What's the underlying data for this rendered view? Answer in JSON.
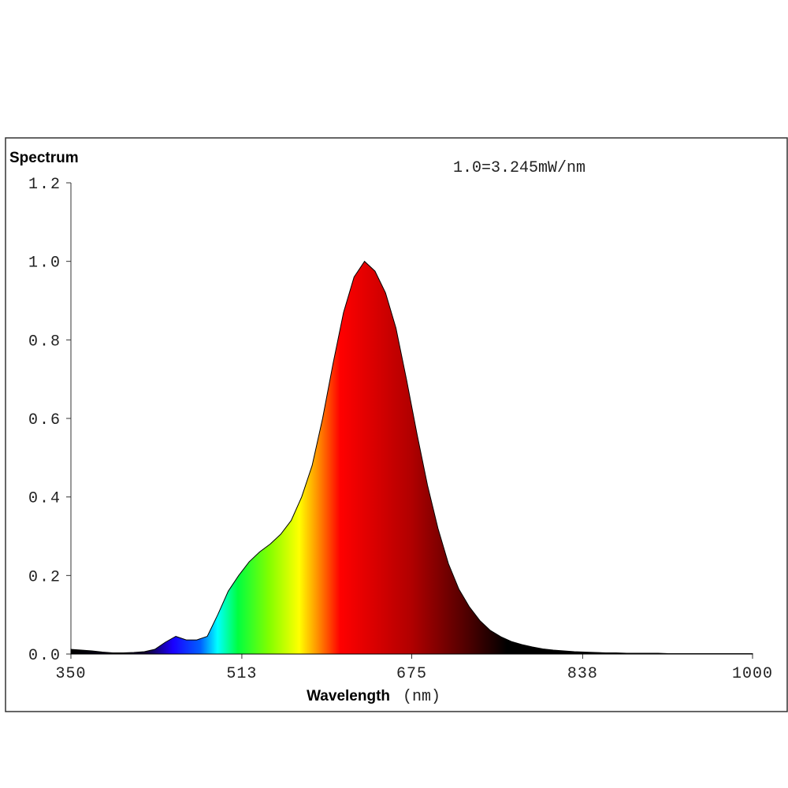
{
  "chart_data": {
    "type": "area",
    "title": "Spectrum",
    "annotation": "1.0=3.245mW/nm",
    "x_label": "Wavelength",
    "x_unit": "(nm)",
    "x": [
      350,
      360,
      370,
      380,
      390,
      400,
      410,
      420,
      430,
      440,
      450,
      460,
      470,
      480,
      490,
      500,
      510,
      520,
      530,
      540,
      550,
      560,
      570,
      580,
      590,
      600,
      610,
      620,
      630,
      640,
      650,
      660,
      670,
      680,
      690,
      700,
      710,
      720,
      730,
      740,
      750,
      760,
      770,
      780,
      790,
      800,
      810,
      820,
      830,
      840,
      850,
      860,
      870,
      880,
      890,
      900,
      910,
      920,
      930,
      940,
      950,
      960,
      970,
      980,
      990,
      1000
    ],
    "values": [
      0.012,
      0.01,
      0.008,
      0.005,
      0.003,
      0.003,
      0.004,
      0.006,
      0.012,
      0.03,
      0.045,
      0.036,
      0.036,
      0.045,
      0.1,
      0.16,
      0.2,
      0.235,
      0.26,
      0.28,
      0.305,
      0.34,
      0.4,
      0.48,
      0.6,
      0.74,
      0.87,
      0.96,
      1.0,
      0.975,
      0.92,
      0.83,
      0.7,
      0.56,
      0.43,
      0.32,
      0.23,
      0.165,
      0.12,
      0.085,
      0.06,
      0.044,
      0.032,
      0.024,
      0.018,
      0.013,
      0.01,
      0.008,
      0.006,
      0.005,
      0.004,
      0.003,
      0.003,
      0.002,
      0.002,
      0.002,
      0.002,
      0.001,
      0.001,
      0.001,
      0.001,
      0.001,
      0.001,
      0.001,
      0.001,
      0.001
    ],
    "xlim": [
      350,
      1000
    ],
    "xticks": [
      350,
      513,
      675,
      838,
      1000
    ],
    "ylim": [
      0,
      1.2
    ],
    "yticks": [
      {
        "value": 0,
        "label": "0.0"
      },
      0.2,
      0.4,
      0.6,
      0.8,
      {
        "value": 1,
        "label": "1.0"
      },
      1.2
    ]
  }
}
